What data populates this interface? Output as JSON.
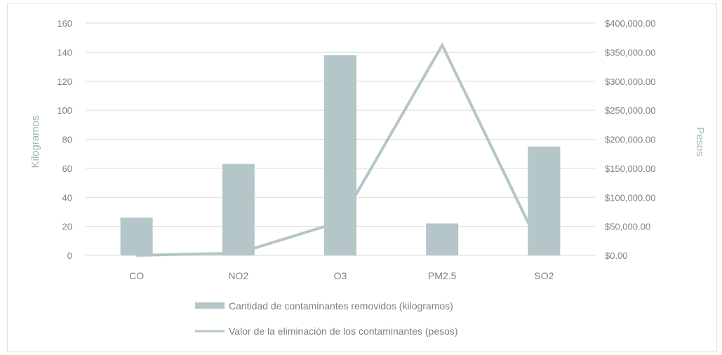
{
  "chart_data": {
    "type": "bar",
    "categories": [
      "CO",
      "NO2",
      "O3",
      "PM2.5",
      "SO2"
    ],
    "series": [
      {
        "name": "Cantidad de contaminantes removidos (kilogramos)",
        "type": "bar",
        "axis": "left",
        "values": [
          26,
          63,
          138,
          22,
          75
        ],
        "color": "#b4c6c7"
      },
      {
        "name": "Valor de la eliminación de los contaminantes (pesos)",
        "type": "line",
        "axis": "right",
        "values": [
          0,
          4000,
          58000,
          362000,
          0
        ],
        "color": "#b4c6c7"
      }
    ],
    "ylabel": "Kilogramos",
    "y2label": "Pesos",
    "ylim": [
      0,
      160
    ],
    "y2lim": [
      0,
      400000
    ],
    "yticks": [
      "0",
      "20",
      "40",
      "60",
      "80",
      "100",
      "120",
      "140",
      "160"
    ],
    "y2ticks": [
      "$0.00",
      "$50,000.00",
      "$100,000.00",
      "$150,000.00",
      "$200,000.00",
      "$250,000.00",
      "$300,000.00",
      "$350,000.00",
      "$400,000.00"
    ],
    "grid": true,
    "legend": "bottom",
    "gridColor": "#d9d9d9",
    "axisLineColor": "#d9d9d9"
  }
}
